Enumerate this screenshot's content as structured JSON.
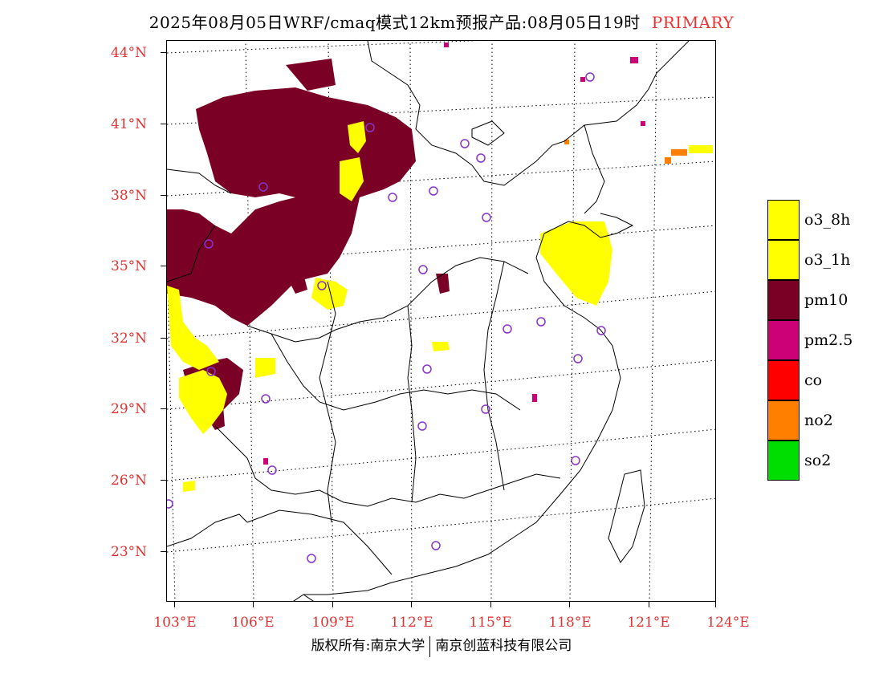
{
  "title": {
    "main": "2025年08月05日WRF/cmaq模式12km预报产品:08月05日19时",
    "tag": "PRIMARY",
    "tag_color": "#ee3333"
  },
  "latitude_labels": [
    "44°N",
    "41°N",
    "38°N",
    "35°N",
    "32°N",
    "29°N",
    "26°N",
    "23°N"
  ],
  "longitude_labels": [
    "103°E",
    "106°E",
    "109°E",
    "112°E",
    "115°E",
    "118°E",
    "121°E",
    "124°E"
  ],
  "legend": [
    {
      "label": "o3_8h",
      "color": "#ffff00"
    },
    {
      "label": "o3_1h",
      "color": "#ffff00"
    },
    {
      "label": "pm10",
      "color": "#7a0026"
    },
    {
      "label": "pm2.5",
      "color": "#cc0077"
    },
    {
      "label": "co",
      "color": "#ff0000"
    },
    {
      "label": "no2",
      "color": "#ff7f00"
    },
    {
      "label": "so2",
      "color": "#00dd00"
    }
  ],
  "footer": {
    "left": "版权所有:南京大学",
    "right": "南京创蓝科技有限公司"
  },
  "colors": {
    "pm10": "#7a0026",
    "o3": "#ffff00",
    "pm25": "#cc0077",
    "station_marker": "#8833cc",
    "grid": "#000000",
    "axis_label": "#dd3333"
  }
}
